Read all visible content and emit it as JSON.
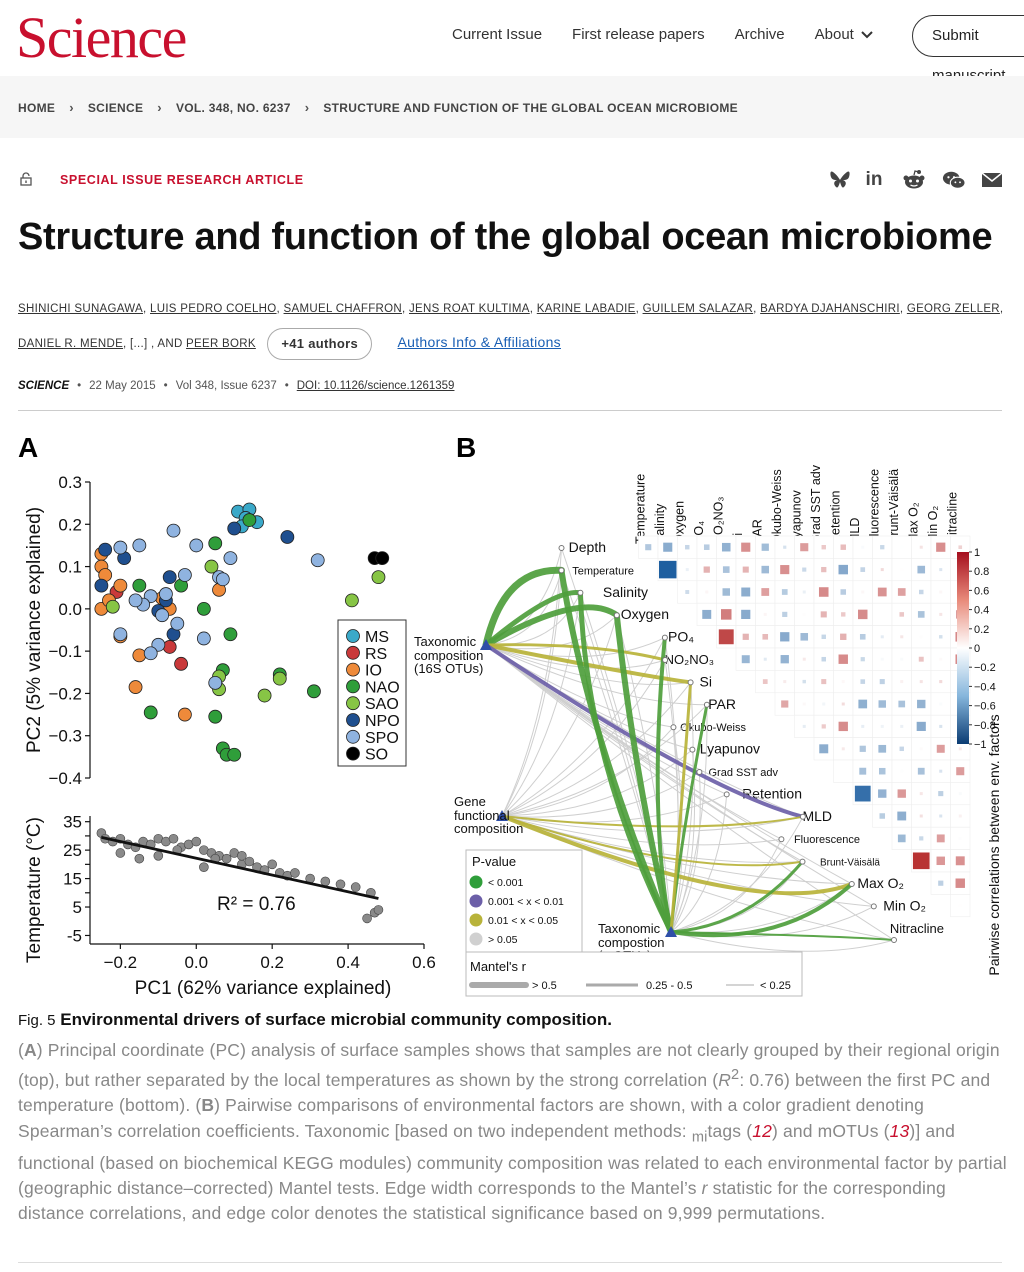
{
  "header": {
    "logo": "Science",
    "nav": [
      "Current Issue",
      "First release papers",
      "Archive",
      "About"
    ],
    "submit_label": "Submit manuscript"
  },
  "breadcrumb": [
    "HOME",
    "SCIENCE",
    "VOL. 348, NO. 6237",
    "STRUCTURE AND FUNCTION OF THE GLOBAL OCEAN MICROBIOME"
  ],
  "article": {
    "section": "SPECIAL ISSUE RESEARCH ARTICLE",
    "share_icons": [
      "bluesky-icon",
      "linkedin-icon",
      "reddit-icon",
      "wechat-icon",
      "email-icon"
    ],
    "title": "Structure and function of the global ocean microbiome",
    "authors_line1": [
      "SHINICHI SUNAGAWA",
      "LUIS PEDRO COELHO",
      "SAMUEL CHAFFRON",
      "JENS ROAT KULTIMA",
      "KARINE LABADIE",
      "GUILLEM SALAZAR",
      "BARDYA DJAHANSCHIRI",
      "GEORG ZELLER"
    ],
    "authors_line2_first": "DANIEL R. MENDE",
    "authors_ellipsis": ", [...] , AND ",
    "authors_last": "PEER BORK",
    "more_authors": "+41 authors",
    "affiliations_link": "Authors Info & Affiliations",
    "journal": "SCIENCE",
    "date": "22 May 2015",
    "volume": "Vol 348, Issue 6237",
    "doi": "DOI: 10.1126/science.1261359"
  },
  "figure": {
    "panel_a": "A",
    "panel_b": "B",
    "legend_a": [
      {
        "label": "MS",
        "color": "#3aa9c9"
      },
      {
        "label": "RS",
        "color": "#c9393a"
      },
      {
        "label": "IO",
        "color": "#ee8a3a"
      },
      {
        "label": "NAO",
        "color": "#2f9e3a"
      },
      {
        "label": "SAO",
        "color": "#87c545"
      },
      {
        "label": "NPO",
        "color": "#1f4f8f"
      },
      {
        "label": "SPO",
        "color": "#8fb3e0"
      },
      {
        "label": "SO",
        "color": "#000000"
      }
    ],
    "env_factors": [
      "Depth",
      "Temperature",
      "Salinity",
      "Oxygen",
      "PO₄",
      "NO₂NO₃",
      "Si",
      "PAR",
      "Okubo-Weiss",
      "Lyapunov",
      "Grad SST adv",
      "Retention",
      "MLD",
      "Fluorescence",
      "Brunt-Väisälä",
      "Max O₂",
      "Min O₂",
      "Nitracline"
    ],
    "nodes_b": [
      "Taxonomic composition (16S OTUs)",
      "Gene functional composition",
      "Taxonomic compostion (mOTUs)"
    ],
    "colorbar_ticks": [
      "1",
      "0.8",
      "0.6",
      "0.4",
      "0.2",
      "0",
      "−0.2",
      "−0.4",
      "−0.6",
      "−0.8",
      "−1"
    ],
    "colorbar_label": "Pairwise correlations between env. factors",
    "pvalue_title": "P-value",
    "pvalue_items": [
      {
        "label": "< 0.001",
        "color": "#2f9e3a"
      },
      {
        "label": "0.001 < x < 0.01",
        "color": "#6c5fa8"
      },
      {
        "label": "0.01 < x < 0.05",
        "color": "#b8b33a"
      },
      {
        "label": "> 0.05",
        "color": "#d0d0d0"
      }
    ],
    "mantel_title": "Mantel's r",
    "mantel_items": [
      "> 0.5",
      "0.25 - 0.5",
      "< 0.25"
    ]
  },
  "chart_data": [
    {
      "type": "scatter",
      "xlabel": "",
      "ylabel": "PC2 (5% variance explained)",
      "xlim": [
        -0.28,
        0.6
      ],
      "ylim": [
        -0.4,
        0.3
      ],
      "y_ticks": [
        "0.3",
        "0.2",
        "0.1",
        "0.0",
        "−0.1",
        "−0.2",
        "−0.3",
        "−0.4"
      ],
      "legend_position": "right",
      "series": [
        {
          "name": "MS",
          "points": [
            [
              0.11,
              0.23
            ],
            [
              0.14,
              0.235
            ],
            [
              0.13,
              0.215
            ],
            [
              0.16,
              0.205
            ],
            [
              0.12,
              0.195
            ]
          ]
        },
        {
          "name": "RS",
          "points": [
            [
              -0.21,
              0.04
            ],
            [
              -0.04,
              -0.13
            ],
            [
              -0.07,
              -0.09
            ]
          ]
        },
        {
          "name": "IO",
          "points": [
            [
              -0.25,
              0.13
            ],
            [
              -0.25,
              0.1
            ],
            [
              -0.24,
              0.08
            ],
            [
              -0.25,
              0.0
            ],
            [
              -0.2,
              0.055
            ],
            [
              -0.2,
              -0.065
            ],
            [
              -0.15,
              -0.11
            ],
            [
              -0.16,
              -0.185
            ],
            [
              -0.03,
              -0.25
            ],
            [
              -0.09,
              0.025
            ],
            [
              -0.07,
              0.0
            ],
            [
              0.06,
              0.045
            ],
            [
              -0.23,
              0.02
            ]
          ]
        },
        {
          "name": "NAO",
          "points": [
            [
              0.05,
              0.155
            ],
            [
              0.09,
              -0.06
            ],
            [
              0.05,
              -0.255
            ],
            [
              0.02,
              0.0
            ],
            [
              -0.04,
              0.055
            ],
            [
              0.07,
              -0.145
            ],
            [
              0.22,
              -0.155
            ],
            [
              0.31,
              -0.195
            ],
            [
              0.07,
              -0.33
            ],
            [
              0.08,
              -0.345
            ],
            [
              0.1,
              -0.345
            ],
            [
              -0.12,
              -0.245
            ],
            [
              -0.15,
              0.055
            ],
            [
              0.14,
              0.21
            ]
          ]
        },
        {
          "name": "SAO",
          "points": [
            [
              -0.22,
              0.005
            ],
            [
              0.06,
              -0.16
            ],
            [
              0.06,
              -0.19
            ],
            [
              0.22,
              -0.165
            ],
            [
              0.18,
              -0.205
            ],
            [
              0.04,
              0.1
            ],
            [
              0.41,
              0.02
            ],
            [
              0.48,
              0.075
            ]
          ]
        },
        {
          "name": "NPO",
          "points": [
            [
              -0.24,
              0.14
            ],
            [
              -0.25,
              0.055
            ],
            [
              -0.08,
              0.02
            ],
            [
              -0.1,
              -0.005
            ],
            [
              0.1,
              0.19
            ],
            [
              0.24,
              0.17
            ],
            [
              -0.19,
              0.12
            ],
            [
              -0.07,
              0.075
            ],
            [
              -0.06,
              -0.06
            ]
          ]
        },
        {
          "name": "SPO",
          "points": [
            [
              -0.2,
              0.145
            ],
            [
              -0.15,
              0.15
            ],
            [
              -0.06,
              0.185
            ],
            [
              0.0,
              0.15
            ],
            [
              0.06,
              0.075
            ],
            [
              0.07,
              0.07
            ],
            [
              0.09,
              0.12
            ],
            [
              0.32,
              0.115
            ],
            [
              -0.08,
              0.035
            ],
            [
              -0.12,
              0.03
            ],
            [
              -0.14,
              0.01
            ],
            [
              -0.09,
              -0.015
            ],
            [
              -0.1,
              -0.085
            ],
            [
              -0.12,
              -0.105
            ],
            [
              -0.2,
              -0.06
            ],
            [
              0.02,
              -0.07
            ],
            [
              -0.05,
              -0.035
            ],
            [
              0.05,
              -0.175
            ],
            [
              -0.03,
              0.08
            ],
            [
              -0.16,
              0.02
            ]
          ]
        },
        {
          "name": "SO",
          "points": [
            [
              0.47,
              0.12
            ],
            [
              0.49,
              0.12
            ]
          ]
        }
      ]
    },
    {
      "type": "scatter",
      "xlabel": "PC1 (62% variance explained)",
      "ylabel": "Temperature (°C)",
      "xlim": [
        -0.28,
        0.6
      ],
      "ylim": [
        -8,
        37
      ],
      "x_ticks": [
        "−0.2",
        "0.0",
        "0.2",
        "0.4",
        "0.6"
      ],
      "y_ticks": [
        "35",
        "30",
        "25",
        "20",
        "15",
        "10",
        "5",
        "-5"
      ],
      "annotation": "R² = 0.76",
      "regression": {
        "x": [
          -0.25,
          0.48
        ],
        "y": [
          29.5,
          8
        ]
      },
      "points": [
        [
          -0.25,
          31
        ],
        [
          -0.24,
          29
        ],
        [
          -0.22,
          28
        ],
        [
          -0.2,
          29
        ],
        [
          -0.18,
          27
        ],
        [
          -0.16,
          26
        ],
        [
          -0.14,
          28
        ],
        [
          -0.12,
          27
        ],
        [
          -0.1,
          29
        ],
        [
          -0.08,
          28
        ],
        [
          -0.06,
          29
        ],
        [
          -0.04,
          26
        ],
        [
          -0.02,
          27
        ],
        [
          0.0,
          28
        ],
        [
          0.02,
          25
        ],
        [
          0.04,
          24
        ],
        [
          0.06,
          23
        ],
        [
          0.08,
          22
        ],
        [
          0.1,
          24
        ],
        [
          0.12,
          20
        ],
        [
          0.14,
          21
        ],
        [
          0.16,
          19
        ],
        [
          0.18,
          18
        ],
        [
          0.2,
          20
        ],
        [
          0.22,
          17
        ],
        [
          0.24,
          16
        ],
        [
          0.26,
          17
        ],
        [
          0.3,
          15
        ],
        [
          0.34,
          14
        ],
        [
          0.38,
          13
        ],
        [
          0.42,
          12
        ],
        [
          0.46,
          10
        ],
        [
          0.47,
          3
        ],
        [
          0.48,
          4
        ],
        [
          0.45,
          1
        ],
        [
          -0.2,
          24
        ],
        [
          -0.15,
          22
        ],
        [
          -0.1,
          23
        ],
        [
          -0.05,
          25
        ],
        [
          0.05,
          22
        ],
        [
          0.12,
          23
        ],
        [
          0.02,
          19
        ]
      ]
    }
  ]
}
